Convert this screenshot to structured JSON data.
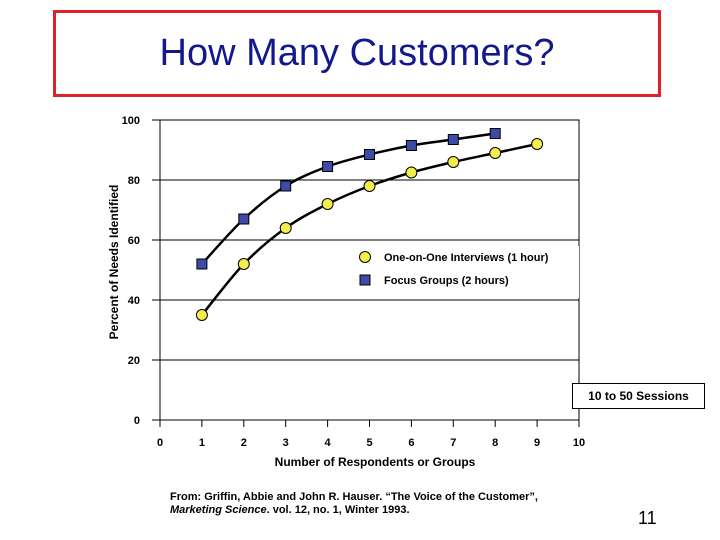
{
  "slide": {
    "title": "How Many Customers?",
    "sessions_note": "10 to 50 Sessions",
    "source_line1": "From: Griffin, Abbie and John R. Hauser. “The Voice of the Customer”,",
    "source_journal": "Marketing Science",
    "source_line2_rest": ". vol. 12, no. 1, Winter 1993.",
    "page_number": "11"
  },
  "chart_data": {
    "type": "line",
    "xlabel": "Number of Respondents or Groups",
    "ylabel": "Percent of Needs Identified",
    "xlim": [
      0,
      10
    ],
    "ylim": [
      0,
      100
    ],
    "x_ticks": [
      0,
      1,
      2,
      3,
      4,
      5,
      6,
      7,
      8,
      9,
      10
    ],
    "y_ticks": [
      0,
      20,
      40,
      60,
      80,
      100
    ],
    "legend_position": "inside-right",
    "series": [
      {
        "name": "One-on-One Interviews (1 hour)",
        "marker": "circle",
        "color": "#f4ee4c",
        "x": [
          1,
          2,
          3,
          4,
          5,
          6,
          7,
          8,
          9
        ],
        "y": [
          35,
          52,
          64,
          72,
          78,
          82.5,
          86,
          89,
          92
        ]
      },
      {
        "name": "Focus Groups (2 hours)",
        "marker": "square",
        "color": "#3d4aa8",
        "x": [
          1,
          2,
          3,
          4,
          5,
          6,
          7,
          8
        ],
        "y": [
          52,
          67,
          78,
          84.5,
          88.5,
          91.5,
          93.5,
          95.5
        ]
      }
    ]
  }
}
